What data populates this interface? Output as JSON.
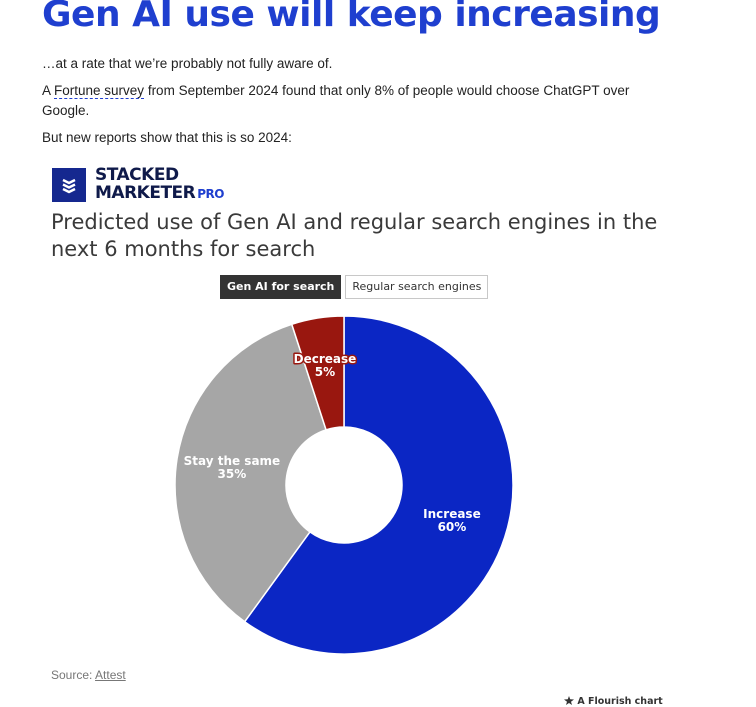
{
  "headline": "Gen AI use will keep increasing",
  "intro": {
    "line1": "…at a rate that we’re probably not fully aware of.",
    "line2_prefix": "A ",
    "line2_link": "Fortune survey",
    "line2_suffix": " from September 2024 found that only 8% of people would choose ChatGPT over Google.",
    "line3": "But new reports show that this is so 2024:"
  },
  "logo": {
    "line1": "STACKED",
    "line2": "MARKETER",
    "badge": "PRO",
    "icon": "stacked-layers-icon"
  },
  "tabs": [
    {
      "label": "Gen AI for search",
      "active": true
    },
    {
      "label": "Regular search engines",
      "active": false
    }
  ],
  "chart_data": {
    "type": "pie",
    "title": "Predicted use of Gen AI and regular search engines in the next 6 months for search",
    "donut": true,
    "categories": [
      "Increase",
      "Stay the same",
      "Decrease"
    ],
    "values": [
      60,
      35,
      5
    ],
    "value_labels": [
      "60%",
      "35%",
      "5%"
    ],
    "colors": [
      "#0b26c4",
      "#a6a6a6",
      "#99170f"
    ],
    "start": "12 o'clock",
    "direction": "clockwise"
  },
  "footer": {
    "source_prefix": "Source: ",
    "source_link": "Attest",
    "credit": "A Flourish chart",
    "credit_icon": "flourish-icon"
  }
}
